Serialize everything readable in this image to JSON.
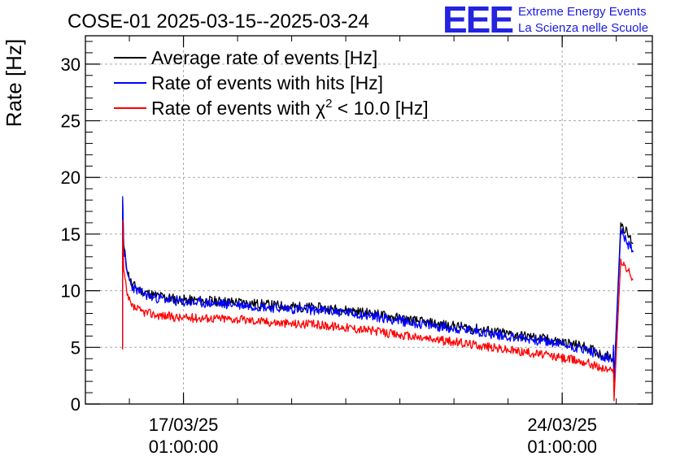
{
  "logo": {
    "mark": "EEE",
    "line1": "Extreme Energy Events",
    "line2": "La Scienza nelle Scuole",
    "color": "#2323e0"
  },
  "chart_data": {
    "type": "line",
    "title": "COSE-01 2025-03-15--2025-03-24",
    "ylabel": "Rate [Hz]",
    "xlabel": "",
    "xlim": [
      "2025-03-15 05:30",
      "2025-03-25 17:00"
    ],
    "ylim": [
      0,
      32.5
    ],
    "yticks": [
      0,
      5,
      10,
      15,
      20,
      25,
      30
    ],
    "xticks": [
      {
        "at": "2025-03-17 01:00",
        "line1": "17/03/25",
        "line2": "01:00:00"
      },
      {
        "at": "2025-03-24 01:00",
        "line1": "24/03/25",
        "line2": "01:00:00"
      }
    ],
    "grid": true,
    "legend_position": "top-left",
    "x": [
      "2025-03-15 22:00",
      "2025-03-15 22:01",
      "2025-03-15 22:30",
      "2025-03-16 00:00",
      "2025-03-16 02:00",
      "2025-03-16 06:00",
      "2025-03-16 12:00",
      "2025-03-17 00:00",
      "2025-03-17 12:00",
      "2025-03-18 00:00",
      "2025-03-18 12:00",
      "2025-03-19 00:00",
      "2025-03-19 12:00",
      "2025-03-20 00:00",
      "2025-03-20 12:00",
      "2025-03-21 00:00",
      "2025-03-21 12:00",
      "2025-03-22 00:00",
      "2025-03-22 12:00",
      "2025-03-23 00:00",
      "2025-03-23 12:00",
      "2025-03-24 00:00",
      "2025-03-24 12:00",
      "2025-03-24 18:00",
      "2025-03-24 22:00",
      "2025-03-24 23:30",
      "2025-03-24 23:45",
      "2025-03-25 00:00",
      "2025-03-25 03:00",
      "2025-03-25 06:00",
      "2025-03-25 08:30"
    ],
    "series": [
      {
        "name": "Average rate of events [Hz]",
        "color": "#000000",
        "values": [
          5.2,
          18.0,
          14.0,
          11.8,
          10.6,
          10.0,
          9.6,
          9.2,
          9.1,
          9.0,
          8.8,
          8.6,
          8.5,
          8.3,
          8.0,
          7.6,
          7.2,
          6.9,
          6.6,
          6.2,
          5.9,
          5.5,
          5.0,
          4.4,
          4.2,
          4.0,
          3.6,
          2.2,
          16.0,
          15.0,
          14.2
        ]
      },
      {
        "name": "Rate of events with hits [Hz]",
        "color": "#0000ff",
        "values": [
          5.0,
          18.3,
          13.8,
          11.6,
          10.4,
          9.8,
          9.4,
          9.0,
          8.9,
          8.8,
          8.6,
          8.4,
          8.3,
          8.1,
          7.8,
          7.4,
          7.0,
          6.7,
          6.4,
          6.0,
          5.7,
          5.3,
          4.8,
          4.2,
          4.0,
          3.8,
          5.2,
          2.0,
          15.3,
          14.2,
          13.4
        ]
      },
      {
        "name": "Rate of events with χ² < 10.0 [Hz]",
        "color": "#ff0000",
        "values": [
          4.8,
          16.2,
          11.8,
          9.6,
          8.6,
          8.2,
          7.9,
          7.6,
          7.6,
          7.5,
          7.3,
          7.1,
          7.0,
          6.8,
          6.5,
          6.1,
          5.8,
          5.5,
          5.2,
          4.8,
          4.5,
          4.1,
          3.7,
          3.2,
          3.0,
          2.8,
          3.1,
          0.3,
          12.8,
          11.8,
          11.0
        ]
      }
    ]
  },
  "legend": [
    {
      "text": "Average rate of events [Hz]",
      "color": "#000000"
    },
    {
      "text": "Rate of events with hits [Hz]",
      "color": "#0000ff"
    },
    {
      "pre": "Rate of events with ",
      "chi": "χ",
      "sup": "2",
      "post": " < 10.0 [Hz]",
      "color": "#ff0000"
    }
  ]
}
